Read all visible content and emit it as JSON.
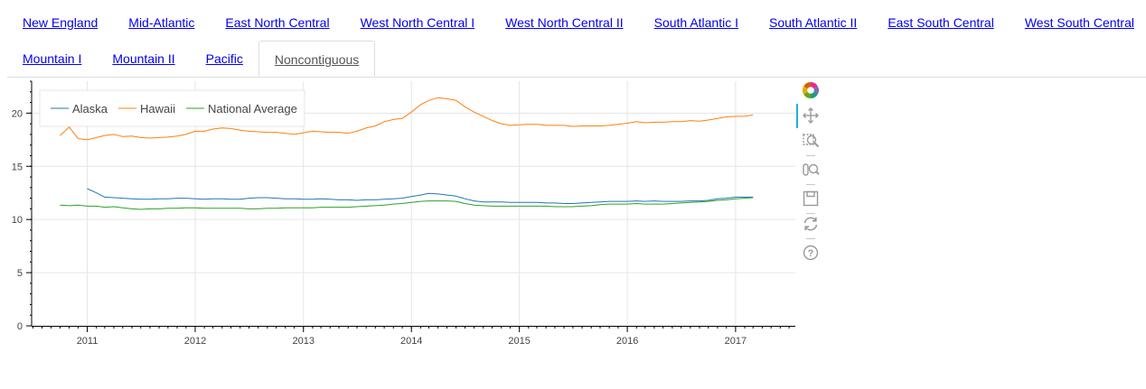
{
  "tabs": {
    "row1": [
      "New England",
      "Mid-Atlantic",
      "East North Central",
      "West North Central I",
      "West North Central II",
      "South Atlantic I",
      "South Atlantic II",
      "East South Central",
      "West South Central"
    ],
    "row2": [
      "Mountain I",
      "Mountain II",
      "Pacific",
      "Noncontiguous"
    ],
    "active": "Noncontiguous"
  },
  "toolbar": {
    "tools": [
      "bokeh-logo-icon",
      "pan-icon",
      "box-zoom-icon",
      "wheel-zoom-icon",
      "save-icon",
      "reset-icon",
      "help-icon"
    ],
    "active_tool": "pan-icon"
  },
  "chart_data": {
    "type": "line",
    "title": "",
    "xlabel": "",
    "ylabel": "",
    "xlim": [
      "2010-06-27",
      "2017-07-22"
    ],
    "ylim": [
      0,
      23
    ],
    "x_ticks": [
      "2011",
      "2012",
      "2013",
      "2014",
      "2015",
      "2016",
      "2017"
    ],
    "y_ticks": [
      0,
      5,
      10,
      15,
      20
    ],
    "grid": true,
    "legend_position": "top-left",
    "x": [
      "2010-10",
      "2010-11",
      "2010-12",
      "2011-01",
      "2011-02",
      "2011-03",
      "2011-04",
      "2011-05",
      "2011-06",
      "2011-07",
      "2011-08",
      "2011-09",
      "2011-10",
      "2011-11",
      "2011-12",
      "2012-01",
      "2012-02",
      "2012-03",
      "2012-04",
      "2012-05",
      "2012-06",
      "2012-07",
      "2012-08",
      "2012-09",
      "2012-10",
      "2012-11",
      "2012-12",
      "2013-01",
      "2013-02",
      "2013-03",
      "2013-04",
      "2013-05",
      "2013-06",
      "2013-07",
      "2013-08",
      "2013-09",
      "2013-10",
      "2013-11",
      "2013-12",
      "2014-01",
      "2014-02",
      "2014-03",
      "2014-04",
      "2014-05",
      "2014-06",
      "2014-07",
      "2014-08",
      "2014-09",
      "2014-10",
      "2014-11",
      "2014-12",
      "2015-01",
      "2015-02",
      "2015-03",
      "2015-04",
      "2015-05",
      "2015-06",
      "2015-07",
      "2015-08",
      "2015-09",
      "2015-10",
      "2015-11",
      "2015-12",
      "2016-01",
      "2016-02",
      "2016-03",
      "2016-04",
      "2016-05",
      "2016-06",
      "2016-07",
      "2016-08",
      "2016-09",
      "2016-10",
      "2016-11",
      "2016-12",
      "2017-01",
      "2017-02",
      "2017-03"
    ],
    "series": [
      {
        "name": "Alaska",
        "color": "#1f77b4",
        "values": [
          null,
          null,
          null,
          12.9,
          12.5,
          12.1,
          12.05,
          12.0,
          11.95,
          11.9,
          11.9,
          11.95,
          11.95,
          12.0,
          12.0,
          11.95,
          11.9,
          11.95,
          11.95,
          11.9,
          11.9,
          12.0,
          12.05,
          12.05,
          12.0,
          11.95,
          11.95,
          11.9,
          11.9,
          11.95,
          11.9,
          11.85,
          11.85,
          11.8,
          11.85,
          11.85,
          11.9,
          11.95,
          12.0,
          12.15,
          12.3,
          12.45,
          12.4,
          12.3,
          12.2,
          11.95,
          11.75,
          11.65,
          11.65,
          11.65,
          11.6,
          11.6,
          11.6,
          11.6,
          11.55,
          11.55,
          11.5,
          11.5,
          11.55,
          11.6,
          11.65,
          11.7,
          11.7,
          11.7,
          11.75,
          11.7,
          11.75,
          11.7,
          11.7,
          11.7,
          11.75,
          11.75,
          11.8,
          11.95,
          12.0,
          12.1,
          12.1,
          12.1
        ]
      },
      {
        "name": "Hawaii",
        "color": "#ff7f0e",
        "values": [
          17.9,
          18.7,
          17.6,
          17.5,
          17.7,
          17.9,
          18.0,
          17.8,
          17.85,
          17.7,
          17.65,
          17.7,
          17.75,
          17.85,
          18.0,
          18.3,
          18.3,
          18.5,
          18.6,
          18.55,
          18.4,
          18.3,
          18.25,
          18.2,
          18.2,
          18.1,
          18.0,
          18.15,
          18.3,
          18.25,
          18.2,
          18.2,
          18.1,
          18.3,
          18.6,
          18.8,
          19.2,
          19.4,
          19.5,
          20.1,
          20.8,
          21.2,
          21.45,
          21.35,
          21.2,
          20.6,
          20.1,
          19.7,
          19.3,
          19.0,
          18.85,
          18.9,
          18.95,
          18.95,
          18.85,
          18.85,
          18.85,
          18.75,
          18.8,
          18.8,
          18.8,
          18.85,
          18.95,
          19.05,
          19.2,
          19.1,
          19.15,
          19.15,
          19.2,
          19.2,
          19.3,
          19.25,
          19.35,
          19.5,
          19.65,
          19.7,
          19.7,
          19.85
        ]
      },
      {
        "name": "National Average",
        "color": "#2ca02c",
        "values": [
          11.35,
          11.3,
          11.35,
          11.25,
          11.25,
          11.15,
          11.2,
          11.1,
          11.0,
          10.95,
          11.0,
          11.0,
          11.05,
          11.05,
          11.1,
          11.1,
          11.05,
          11.05,
          11.05,
          11.05,
          11.05,
          11.0,
          11.0,
          11.05,
          11.05,
          11.1,
          11.1,
          11.1,
          11.1,
          11.15,
          11.15,
          11.15,
          11.15,
          11.2,
          11.25,
          11.3,
          11.35,
          11.45,
          11.5,
          11.6,
          11.7,
          11.75,
          11.75,
          11.75,
          11.7,
          11.5,
          11.35,
          11.3,
          11.25,
          11.25,
          11.25,
          11.25,
          11.25,
          11.25,
          11.25,
          11.2,
          11.2,
          11.2,
          11.25,
          11.3,
          11.4,
          11.45,
          11.45,
          11.45,
          11.5,
          11.45,
          11.45,
          11.45,
          11.5,
          11.55,
          11.6,
          11.65,
          11.7,
          11.8,
          11.85,
          11.95,
          12.0,
          12.05
        ]
      }
    ]
  }
}
